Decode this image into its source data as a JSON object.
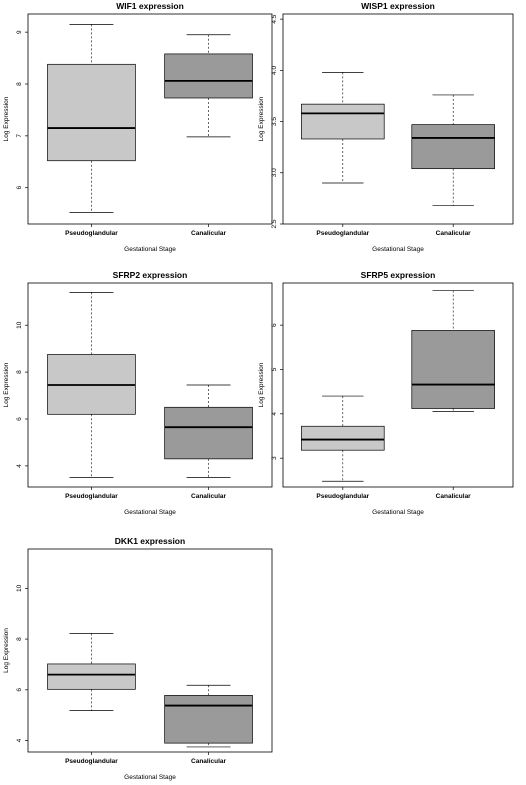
{
  "chart_data": [
    {
      "type": "box",
      "title": "WIF1 expression",
      "xlabel": "Gestational Stage",
      "ylabel": "Log Expression",
      "ylim": [
        5.3,
        9.35
      ],
      "yticks": [
        6,
        7,
        8,
        9
      ],
      "categories": [
        "Pseudoglandular",
        "Canalicular"
      ],
      "boxes": [
        {
          "min": 5.52,
          "q1": 6.52,
          "median": 7.15,
          "q3": 8.38,
          "max": 9.15
        },
        {
          "min": 6.98,
          "q1": 7.73,
          "median": 8.06,
          "q3": 8.58,
          "max": 8.95
        }
      ],
      "colors": [
        "#c8c8c8",
        "#9a9a9a"
      ]
    },
    {
      "type": "box",
      "title": "WISP1 expression",
      "xlabel": "Gestational Stage",
      "ylabel": "Log Expression",
      "ylim": [
        2.5,
        4.55
      ],
      "yticks": [
        2.5,
        3.0,
        3.5,
        4.0,
        4.5
      ],
      "categories": [
        "Pseudoglandular",
        "Canalicular"
      ],
      "boxes": [
        {
          "min": 2.9,
          "q1": 3.33,
          "median": 3.58,
          "q3": 3.67,
          "max": 3.98
        },
        {
          "min": 2.68,
          "q1": 3.04,
          "median": 3.34,
          "q3": 3.47,
          "max": 3.76
        }
      ],
      "colors": [
        "#c8c8c8",
        "#9a9a9a"
      ]
    },
    {
      "type": "box",
      "title": "SFRP2 expression",
      "xlabel": "Gestational Stage",
      "ylabel": "Log Expression",
      "ylim": [
        3.1,
        11.8
      ],
      "yticks": [
        4,
        6,
        8,
        10
      ],
      "categories": [
        "Pseudoglandular",
        "Canalicular"
      ],
      "boxes": [
        {
          "min": 3.5,
          "q1": 6.2,
          "median": 7.45,
          "q3": 8.75,
          "max": 11.4
        },
        {
          "min": 3.5,
          "q1": 4.3,
          "median": 5.65,
          "q3": 6.5,
          "max": 7.45
        }
      ],
      "colors": [
        "#c8c8c8",
        "#9a9a9a"
      ]
    },
    {
      "type": "box",
      "title": "SFRP5 expression",
      "xlabel": "Gestational Stage",
      "ylabel": "Log Expression",
      "ylim": [
        2.35,
        6.95
      ],
      "yticks": [
        3,
        4,
        5,
        6
      ],
      "categories": [
        "Pseudoglandular",
        "Canalicular"
      ],
      "boxes": [
        {
          "min": 2.48,
          "q1": 3.18,
          "median": 3.42,
          "q3": 3.72,
          "max": 4.4
        },
        {
          "min": 4.05,
          "q1": 4.12,
          "median": 4.66,
          "q3": 5.88,
          "max": 6.78
        }
      ],
      "colors": [
        "#c8c8c8",
        "#9a9a9a"
      ]
    },
    {
      "type": "box",
      "title": "DKK1 expression",
      "xlabel": "Gestational Stage",
      "ylabel": "Log Expression",
      "ylim": [
        3.55,
        11.55
      ],
      "yticks": [
        4,
        6,
        8,
        10
      ],
      "categories": [
        "Pseudoglandular",
        "Canalicular"
      ],
      "boxes": [
        {
          "min": 5.18,
          "q1": 6.02,
          "median": 6.6,
          "q3": 7.02,
          "max": 8.22
        },
        {
          "min": 3.75,
          "q1": 3.9,
          "median": 5.38,
          "q3": 5.78,
          "max": 6.18
        }
      ],
      "colors": [
        "#c8c8c8",
        "#9a9a9a"
      ]
    }
  ]
}
